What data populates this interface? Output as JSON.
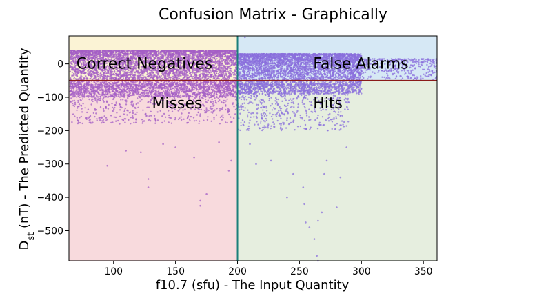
{
  "chart_data": {
    "type": "scatter",
    "title": "Confusion Matrix - Graphically",
    "xlabel": "f10.7 (sfu) - The Input Quantity",
    "ylabel_main": "D",
    "ylabel_sub": "st",
    "ylabel_rest": " (nT) - The Predicted Quantity",
    "xlim": [
      64,
      361
    ],
    "ylim": [
      -590,
      84
    ],
    "xticks": [
      100,
      150,
      200,
      250,
      300,
      350
    ],
    "yticks": [
      0,
      -100,
      -200,
      -300,
      -400,
      -500
    ],
    "x_threshold": 200,
    "y_threshold": -50,
    "threshold_colors": {
      "vertical": "#1a7f7a",
      "horizontal": "#8b1a1a"
    },
    "regions": [
      {
        "name": "Correct Negatives",
        "x": [
          64,
          200
        ],
        "y": [
          -50,
          84
        ],
        "color": "#fbf3d5"
      },
      {
        "name": "False Alarms",
        "x": [
          200,
          361
        ],
        "y": [
          -50,
          84
        ],
        "color": "#d6e8f5"
      },
      {
        "name": "Misses",
        "x": [
          64,
          200
        ],
        "y": [
          -590,
          -50
        ],
        "color": "#f8dadd"
      },
      {
        "name": "Hits",
        "x": [
          200,
          361
        ],
        "y": [
          -590,
          -50
        ],
        "color": "#e6eedf"
      }
    ],
    "region_labels": [
      {
        "text": "Correct Negatives",
        "x": 70,
        "y": -14
      },
      {
        "text": "False Alarms",
        "x": 261,
        "y": -14
      },
      {
        "text": "Misses",
        "x": 131,
        "y": -133
      },
      {
        "text": "Hits",
        "x": 261,
        "y": -133
      }
    ],
    "point_colors": {
      "left": "#a45fc6",
      "right": "#8a6fdc"
    },
    "point_clusters": [
      {
        "x_range": [
          65,
          200
        ],
        "y_range": [
          -100,
          40
        ],
        "n": 5200
      },
      {
        "x_range": [
          65,
          200
        ],
        "y_range": [
          -180,
          -60
        ],
        "n": 900
      },
      {
        "x_range": [
          200,
          300
        ],
        "y_range": [
          -90,
          30
        ],
        "n": 3800
      },
      {
        "x_range": [
          200,
          290
        ],
        "y_range": [
          -200,
          -60
        ],
        "n": 700
      },
      {
        "x_range": [
          290,
          361
        ],
        "y_range": [
          -50,
          15
        ],
        "n": 400
      }
    ],
    "outliers": [
      {
        "x": 95,
        "y": -305
      },
      {
        "x": 110,
        "y": -260
      },
      {
        "x": 122,
        "y": -265
      },
      {
        "x": 128,
        "y": -345
      },
      {
        "x": 128,
        "y": -370
      },
      {
        "x": 140,
        "y": -240
      },
      {
        "x": 150,
        "y": -250
      },
      {
        "x": 165,
        "y": -280
      },
      {
        "x": 170,
        "y": -410
      },
      {
        "x": 170,
        "y": -425
      },
      {
        "x": 175,
        "y": -390
      },
      {
        "x": 185,
        "y": -235
      },
      {
        "x": 195,
        "y": -290
      },
      {
        "x": 193,
        "y": -320
      },
      {
        "x": 210,
        "y": -240
      },
      {
        "x": 215,
        "y": -300
      },
      {
        "x": 227,
        "y": -290
      },
      {
        "x": 240,
        "y": -400
      },
      {
        "x": 245,
        "y": -330
      },
      {
        "x": 253,
        "y": -370
      },
      {
        "x": 254,
        "y": -420
      },
      {
        "x": 255,
        "y": -475
      },
      {
        "x": 258,
        "y": -490
      },
      {
        "x": 262,
        "y": -525
      },
      {
        "x": 264,
        "y": -575
      },
      {
        "x": 265,
        "y": -590
      },
      {
        "x": 265,
        "y": -470
      },
      {
        "x": 268,
        "y": -445
      },
      {
        "x": 270,
        "y": -330
      },
      {
        "x": 272,
        "y": -290
      },
      {
        "x": 280,
        "y": -430
      },
      {
        "x": 283,
        "y": -340
      },
      {
        "x": 288,
        "y": -250
      },
      {
        "x": 206,
        "y": 80
      }
    ]
  }
}
